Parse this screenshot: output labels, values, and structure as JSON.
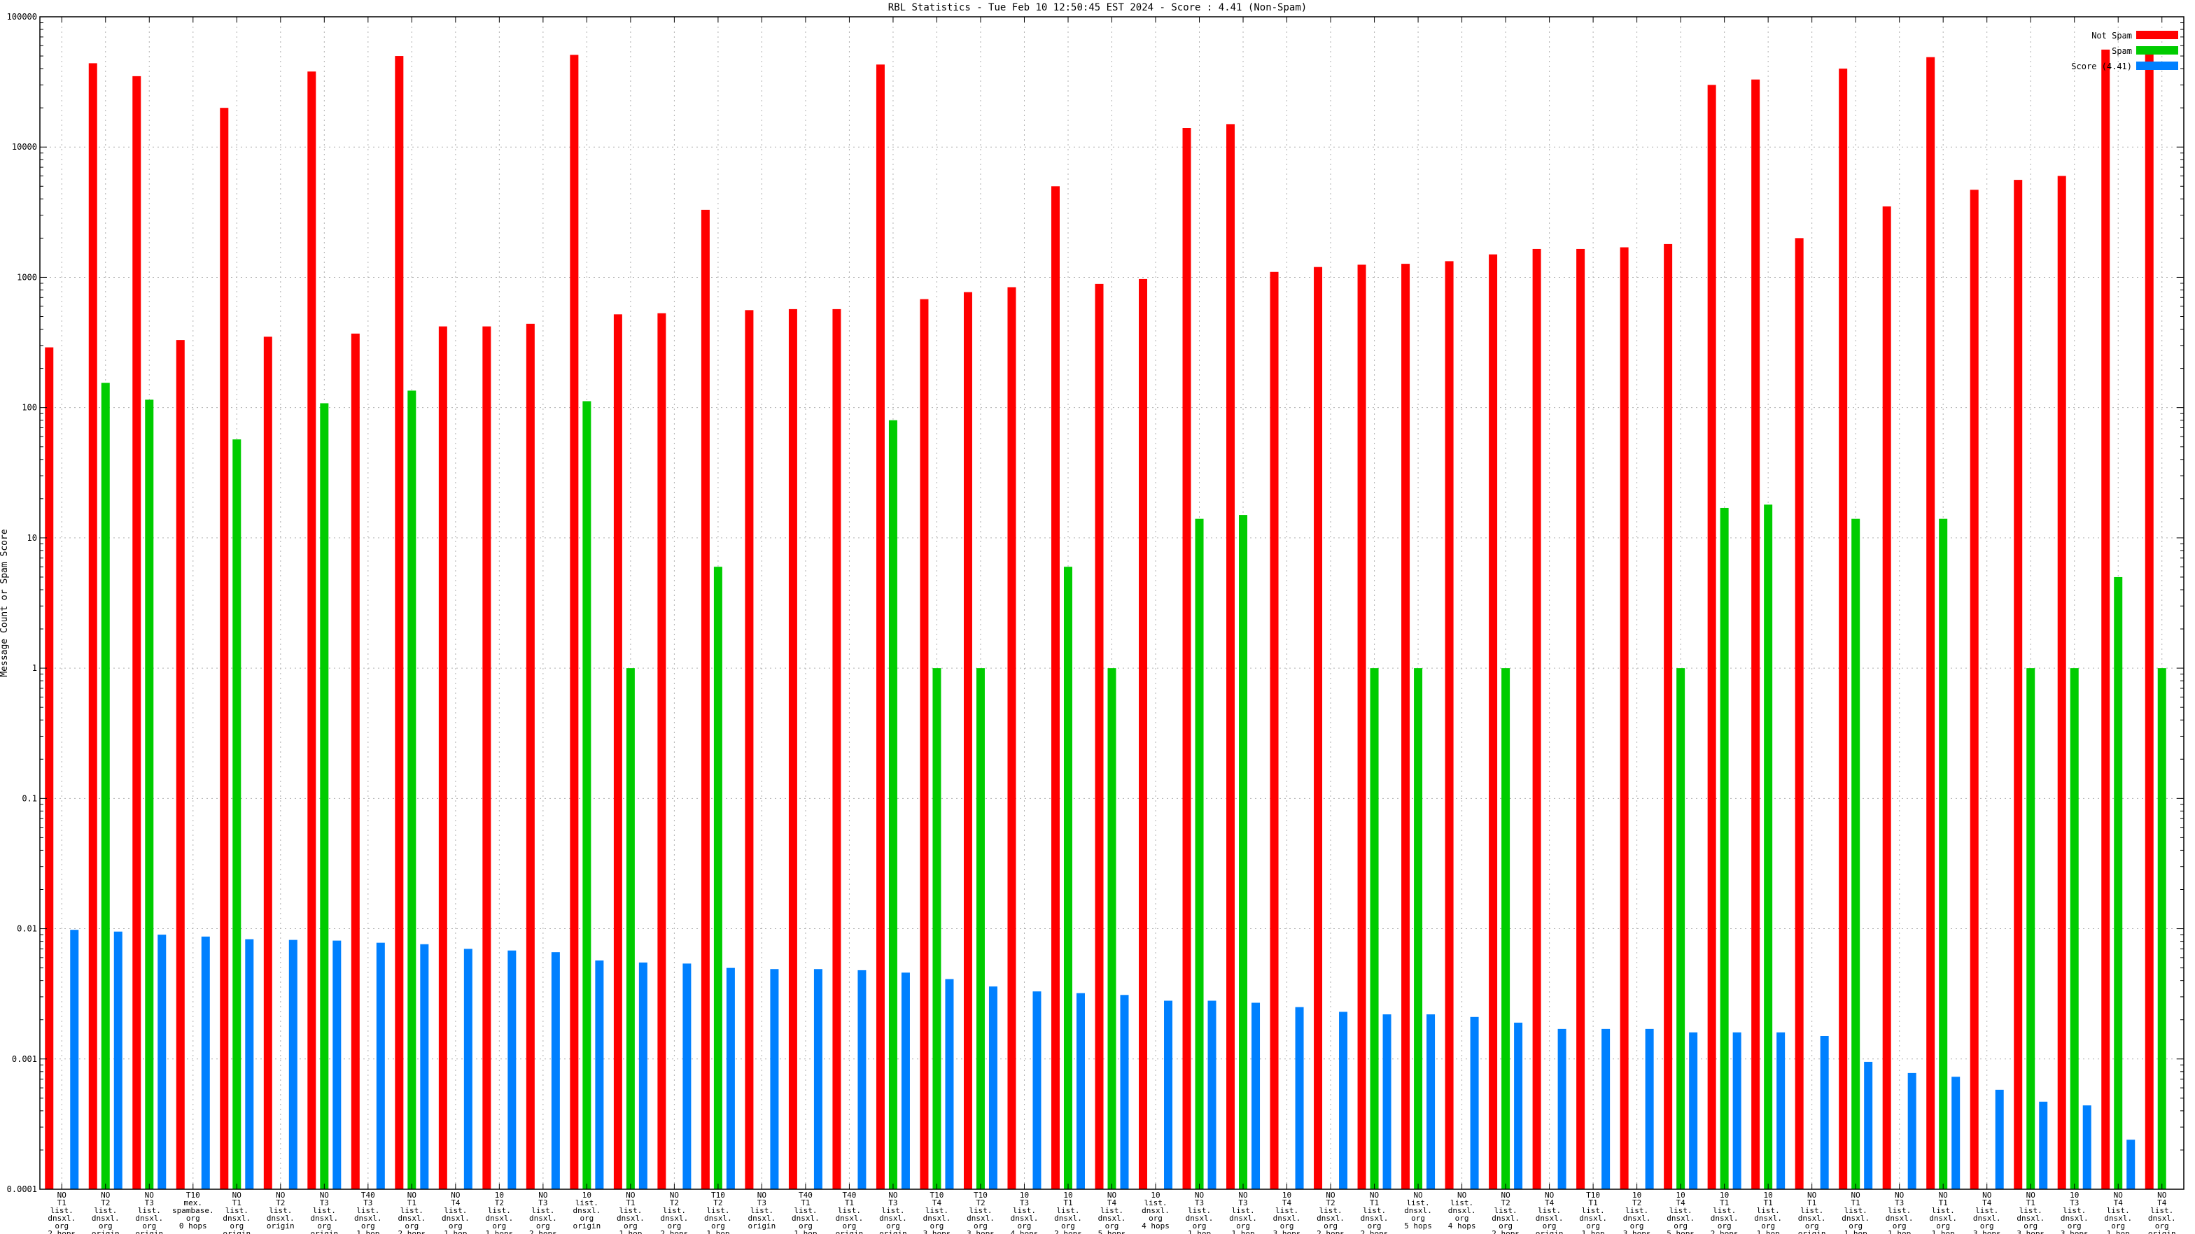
{
  "chart_data": {
    "type": "bar",
    "title": "RBL Statistics - Tue Feb 10 12:50:45 EST 2024 - Score : 4.41 (Non-Spam)",
    "xlabel": "",
    "ylabel": "Message Count or Spam Score",
    "yscale": "log",
    "ylim": [
      0.0001,
      100000
    ],
    "yticks": [
      "0.0001",
      "0.001",
      "0.01",
      "0.1",
      "1",
      "10",
      "100",
      "1000",
      "10000",
      "100000"
    ],
    "grid": true,
    "legend_position": "top-right",
    "categories": [
      [
        "NO",
        "T1",
        "list.",
        "dnsxl.",
        "org",
        "2 hops"
      ],
      [
        "NO",
        "T2",
        "list.",
        "dnsxl.",
        "org",
        "origin"
      ],
      [
        "NO",
        "T3",
        "list.",
        "dnsxl.",
        "org",
        "origin"
      ],
      [
        "T10",
        "mex.",
        "spambase.",
        "org",
        "0 hops"
      ],
      [
        "NO",
        "T1",
        "list.",
        "dnsxl.",
        "org",
        "origin"
      ],
      [
        "NO",
        "T2",
        "list.",
        "dnsxl.",
        "origin"
      ],
      [
        "NO",
        "T3",
        "list.",
        "dnsxl.",
        "org",
        "origin"
      ],
      [
        "T40",
        "T3",
        "list.",
        "dnsxl.",
        "org",
        "1 hop"
      ],
      [
        "NO",
        "T1",
        "list.",
        "dnsxl.",
        "org",
        "2 hops"
      ],
      [
        "NO",
        "T4",
        "list.",
        "dnsxl.",
        "org",
        "1 hop"
      ],
      [
        "10",
        "T2",
        "list.",
        "dnsxl.",
        "org",
        "1 hops"
      ],
      [
        "NO",
        "T3",
        "list.",
        "dnsxl.",
        "org",
        "2 hops"
      ],
      [
        "10",
        "list.",
        "dnsxl.",
        "org",
        "origin"
      ],
      [
        "NO",
        "T1",
        "list.",
        "dnsxl.",
        "org",
        "1 hop"
      ],
      [
        "NO",
        "T2",
        "list.",
        "dnsxl.",
        "org",
        "2 hops"
      ],
      [
        "T10",
        "T2",
        "list.",
        "dnsxl.",
        "org",
        "1 hop"
      ],
      [
        "NO",
        "T3",
        "list.",
        "dnsxl.",
        "origin"
      ],
      [
        "T40",
        "T1",
        "list.",
        "dnsxl.",
        "org",
        "1 hop"
      ],
      [
        "T40",
        "T1",
        "list.",
        "dnsxl.",
        "org",
        "origin"
      ],
      [
        "NO",
        "T3",
        "list.",
        "dnsxl.",
        "org",
        "origin"
      ],
      [
        "T10",
        "T4",
        "list.",
        "dnsxl.",
        "org",
        "3 hops"
      ],
      [
        "T10",
        "T2",
        "list.",
        "dnsxl.",
        "org",
        "3 hops"
      ],
      [
        "10",
        "T3",
        "list.",
        "dnsxl.",
        "org",
        "4 hops"
      ],
      [
        "10",
        "T1",
        "list.",
        "dnsxl.",
        "org",
        "2 hops"
      ],
      [
        "NO",
        "T4",
        "list.",
        "dnsxl.",
        "org",
        "5 hops"
      ],
      [
        "10",
        "list.",
        "dnsxl.",
        "org",
        "4 hops"
      ],
      [
        "NO",
        "T3",
        "list.",
        "dnsxl.",
        "org",
        "1 hop"
      ],
      [
        "NO",
        "T3",
        "list.",
        "dnsxl.",
        "org",
        "1 hop"
      ],
      [
        "10",
        "T4",
        "list.",
        "dnsxl.",
        "org",
        "3 hops"
      ],
      [
        "NO",
        "T2",
        "list.",
        "dnsxl.",
        "org",
        "2 hops"
      ],
      [
        "NO",
        "T1",
        "list.",
        "dnsxl.",
        "org",
        "2 hops"
      ],
      [
        "NO",
        "list.",
        "dnsxl.",
        "org",
        "5 hops"
      ],
      [
        "NO",
        "list.",
        "dnsxl.",
        "org",
        "4 hops"
      ],
      [
        "NO",
        "T2",
        "list.",
        "dnsxl.",
        "org",
        "2 hops"
      ],
      [
        "NO",
        "T4",
        "list.",
        "dnsxl.",
        "org",
        "origin"
      ],
      [
        "T10",
        "T1",
        "list.",
        "dnsxl.",
        "org",
        "1 hop"
      ],
      [
        "10",
        "T2",
        "list.",
        "dnsxl.",
        "org",
        "3 hops"
      ],
      [
        "10",
        "T4",
        "list.",
        "dnsxl.",
        "org",
        "5 hops"
      ],
      [
        "10",
        "T1",
        "list.",
        "dnsxl.",
        "org",
        "2 hops"
      ],
      [
        "10",
        "T1",
        "list.",
        "dnsxl.",
        "org",
        "1 hop"
      ],
      [
        "NO",
        "T1",
        "list.",
        "dnsxl.",
        "org",
        "origin"
      ],
      [
        "NO",
        "T1",
        "list.",
        "dnsxl.",
        "org",
        "1 hop"
      ],
      [
        "NO",
        "T3",
        "list.",
        "dnsxl.",
        "org",
        "1 hop"
      ],
      [
        "NO",
        "T1",
        "list.",
        "dnsxl.",
        "org",
        "1 hop"
      ],
      [
        "NO",
        "T4",
        "list.",
        "dnsxl.",
        "org",
        "3 hops"
      ],
      [
        "NO",
        "T1",
        "list.",
        "dnsxl.",
        "org",
        "3 hops"
      ],
      [
        "10",
        "T3",
        "list.",
        "dnsxl.",
        "org",
        "3 hops"
      ],
      [
        "NO",
        "T4",
        "list.",
        "dnsxl.",
        "org",
        "1 hop"
      ],
      [
        "NO",
        "T4",
        "list.",
        "dnsxl.",
        "org",
        "origin"
      ]
    ],
    "series": [
      {
        "name": "Not Spam",
        "color": "#ff0000",
        "values": [
          290,
          44000,
          35000,
          330,
          20000,
          350,
          38000,
          370,
          50000,
          420,
          420,
          440,
          51000,
          520,
          530,
          3300,
          560,
          570,
          570,
          43000,
          680,
          770,
          840,
          5000,
          890,
          970,
          14000,
          15000,
          1100,
          1200,
          1250,
          1270,
          1330,
          1500,
          1650,
          1650,
          1700,
          1800,
          30000,
          33000,
          2000,
          40000,
          3500,
          49000,
          4700,
          5600,
          6000,
          56000,
          52000
        ]
      },
      {
        "name": "Spam",
        "color": "#00cc00",
        "values": [
          0,
          155,
          115,
          0,
          57,
          0,
          108,
          0,
          135,
          0,
          0,
          0,
          112,
          1,
          0,
          6,
          0,
          0,
          0,
          80,
          1,
          1,
          0,
          6,
          1,
          0,
          14,
          15,
          0,
          0,
          1,
          1,
          0,
          1,
          0,
          0,
          0,
          1,
          17,
          18,
          0,
          14,
          0,
          14,
          0,
          1,
          1,
          5,
          1
        ]
      },
      {
        "name": "Score (4.41)",
        "color": "#0080ff",
        "values": [
          0.0098,
          0.0095,
          0.009,
          0.0087,
          0.0083,
          0.0082,
          0.0081,
          0.0078,
          0.0076,
          0.007,
          0.0068,
          0.0066,
          0.0057,
          0.0055,
          0.0054,
          0.005,
          0.0049,
          0.0049,
          0.0048,
          0.0046,
          0.0041,
          0.0036,
          0.0033,
          0.0032,
          0.0031,
          0.0028,
          0.0028,
          0.0027,
          0.0025,
          0.0023,
          0.0022,
          0.0022,
          0.0021,
          0.0019,
          0.0017,
          0.0017,
          0.0017,
          0.0016,
          0.0016,
          0.0016,
          0.0015,
          0.00095,
          0.00078,
          0.00073,
          0.00058,
          0.00047,
          0.00044,
          0.00024,
          0.0001
        ]
      }
    ]
  }
}
